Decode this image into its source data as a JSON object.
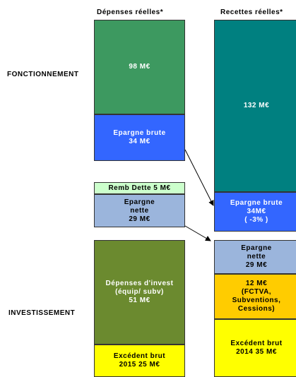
{
  "headers": [
    "Dépenses réelles*",
    "Recettes réelles*"
  ],
  "sections": [
    "FONCTIONNEMENT",
    "INVESTISSEMENT"
  ],
  "left_boxes": [
    {
      "lines": [
        "98 M€"
      ]
    },
    {
      "lines": [
        "Epargne brute",
        "34 M€"
      ]
    },
    {
      "lines": [
        "Remb Dette 5 M€"
      ]
    },
    {
      "lines": [
        "Epargne",
        "nette",
        "29 M€"
      ]
    },
    {
      "lines": [
        "Dépenses d'invest",
        "(équip/ subv)",
        "51 M€"
      ]
    },
    {
      "lines": [
        "Excédent brut",
        "2015 25 M€"
      ]
    }
  ],
  "right_boxes": [
    {
      "lines": [
        "132 M€"
      ]
    },
    {
      "lines": [
        "Epargne brute",
        "34M€",
        "( -3% )"
      ]
    },
    {
      "lines": [
        "Epargne",
        "nette",
        "29 M€"
      ]
    },
    {
      "lines": [
        "12 M€",
        "(FCTVA,",
        "Subventions,",
        "Cessions)"
      ]
    },
    {
      "lines": [
        "Excédent brut",
        "2014 35 M€"
      ]
    }
  ]
}
